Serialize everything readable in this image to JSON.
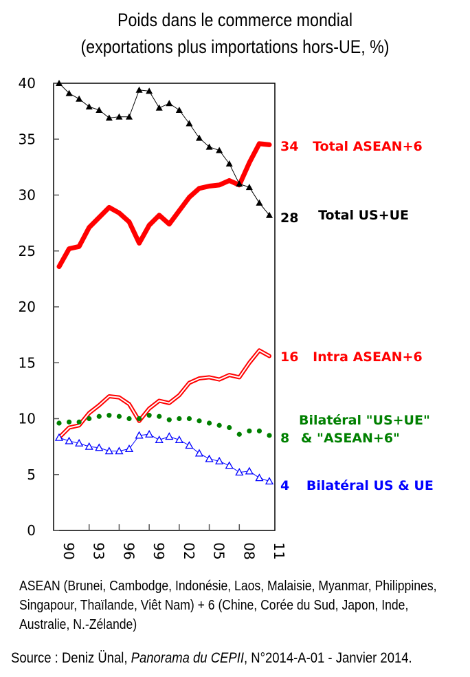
{
  "chart_data": {
    "type": "line",
    "title": "Poids dans le commerce mondial",
    "subtitle": "(exportations plus importations hors-UE, %)",
    "xlabel": "",
    "ylabel": "",
    "ylim": [
      0,
      40
    ],
    "yticks": [
      0,
      5,
      10,
      15,
      20,
      25,
      30,
      35,
      40
    ],
    "x": [
      1990,
      1991,
      1992,
      1993,
      1994,
      1995,
      1996,
      1997,
      1998,
      1999,
      2000,
      2001,
      2002,
      2003,
      2004,
      2005,
      2006,
      2007,
      2008,
      2009,
      2010,
      2011
    ],
    "xtick_years": [
      1990,
      1993,
      1996,
      1999,
      2002,
      2005,
      2008,
      2011
    ],
    "xtick_labels": [
      "90",
      "93",
      "96",
      "99",
      "02",
      "05",
      "08",
      "11"
    ],
    "grid": false,
    "legend": "right (end-of-line labels)",
    "series": [
      {
        "name": "Total ASEAN+6",
        "end_value_label": "34",
        "color": "#ff0000",
        "style": "thick",
        "values": [
          23.6,
          25.2,
          25.4,
          27.1,
          28.0,
          28.9,
          28.4,
          27.6,
          25.7,
          27.3,
          28.2,
          27.4,
          28.6,
          29.8,
          30.6,
          30.8,
          30.9,
          31.3,
          30.9,
          32.9,
          34.6,
          34.5
        ]
      },
      {
        "name": "Total US+UE",
        "end_value_label": "28",
        "color": "#000000",
        "style": "filled-triangles",
        "values": [
          40.0,
          39.1,
          38.6,
          37.9,
          37.6,
          36.9,
          37.0,
          37.0,
          39.4,
          39.3,
          37.8,
          38.2,
          37.6,
          36.4,
          35.1,
          34.3,
          34.0,
          32.8,
          31.0,
          30.7,
          29.3,
          28.2
        ]
      },
      {
        "name": "Intra ASEAN+6",
        "end_value_label": "16",
        "color": "#ff0000",
        "style": "double-line",
        "values": [
          8.3,
          9.2,
          9.4,
          10.5,
          11.2,
          12.0,
          11.9,
          11.3,
          9.8,
          10.9,
          11.6,
          11.4,
          12.1,
          13.2,
          13.6,
          13.7,
          13.5,
          13.9,
          13.7,
          15.0,
          16.1,
          15.6
        ]
      },
      {
        "name": "Bilatéral \"US+UE\" & \"ASEAN+6\"",
        "name_line1": "Bilatéral \"US+UE\"",
        "name_line2": "& \"ASEAN+6\"",
        "end_value_label": "8",
        "color": "#008000",
        "style": "dots",
        "values": [
          9.6,
          9.7,
          9.7,
          10.0,
          10.2,
          10.3,
          10.2,
          10.0,
          10.0,
          10.3,
          10.2,
          9.9,
          10.0,
          10.0,
          9.8,
          9.6,
          9.4,
          9.2,
          8.6,
          8.9,
          8.9,
          8.5
        ]
      },
      {
        "name": "Bilatéral US & UE",
        "end_value_label": "4",
        "color": "#0000ff",
        "style": "open-triangles",
        "values": [
          8.3,
          8.0,
          7.8,
          7.5,
          7.4,
          7.1,
          7.1,
          7.3,
          8.5,
          8.6,
          8.1,
          8.4,
          8.1,
          7.6,
          6.9,
          6.4,
          6.2,
          5.8,
          5.2,
          5.3,
          4.7,
          4.4
        ]
      }
    ]
  },
  "footnote": "ASEAN (Brunei, Cambodge,  Indonésie, Laos, Malaisie, Myanmar, Philippines, Singapour, Thaïlande, Viêt Nam) + 6 (Chine, Corée du Sud, Japon,  Inde, Australie, N.-Zélande)",
  "source": {
    "prefix": "Source : Deniz Ünal, ",
    "publication": "Panorama du CEPII",
    "suffix": ", N°2014-A-01 - Janvier 2014."
  }
}
